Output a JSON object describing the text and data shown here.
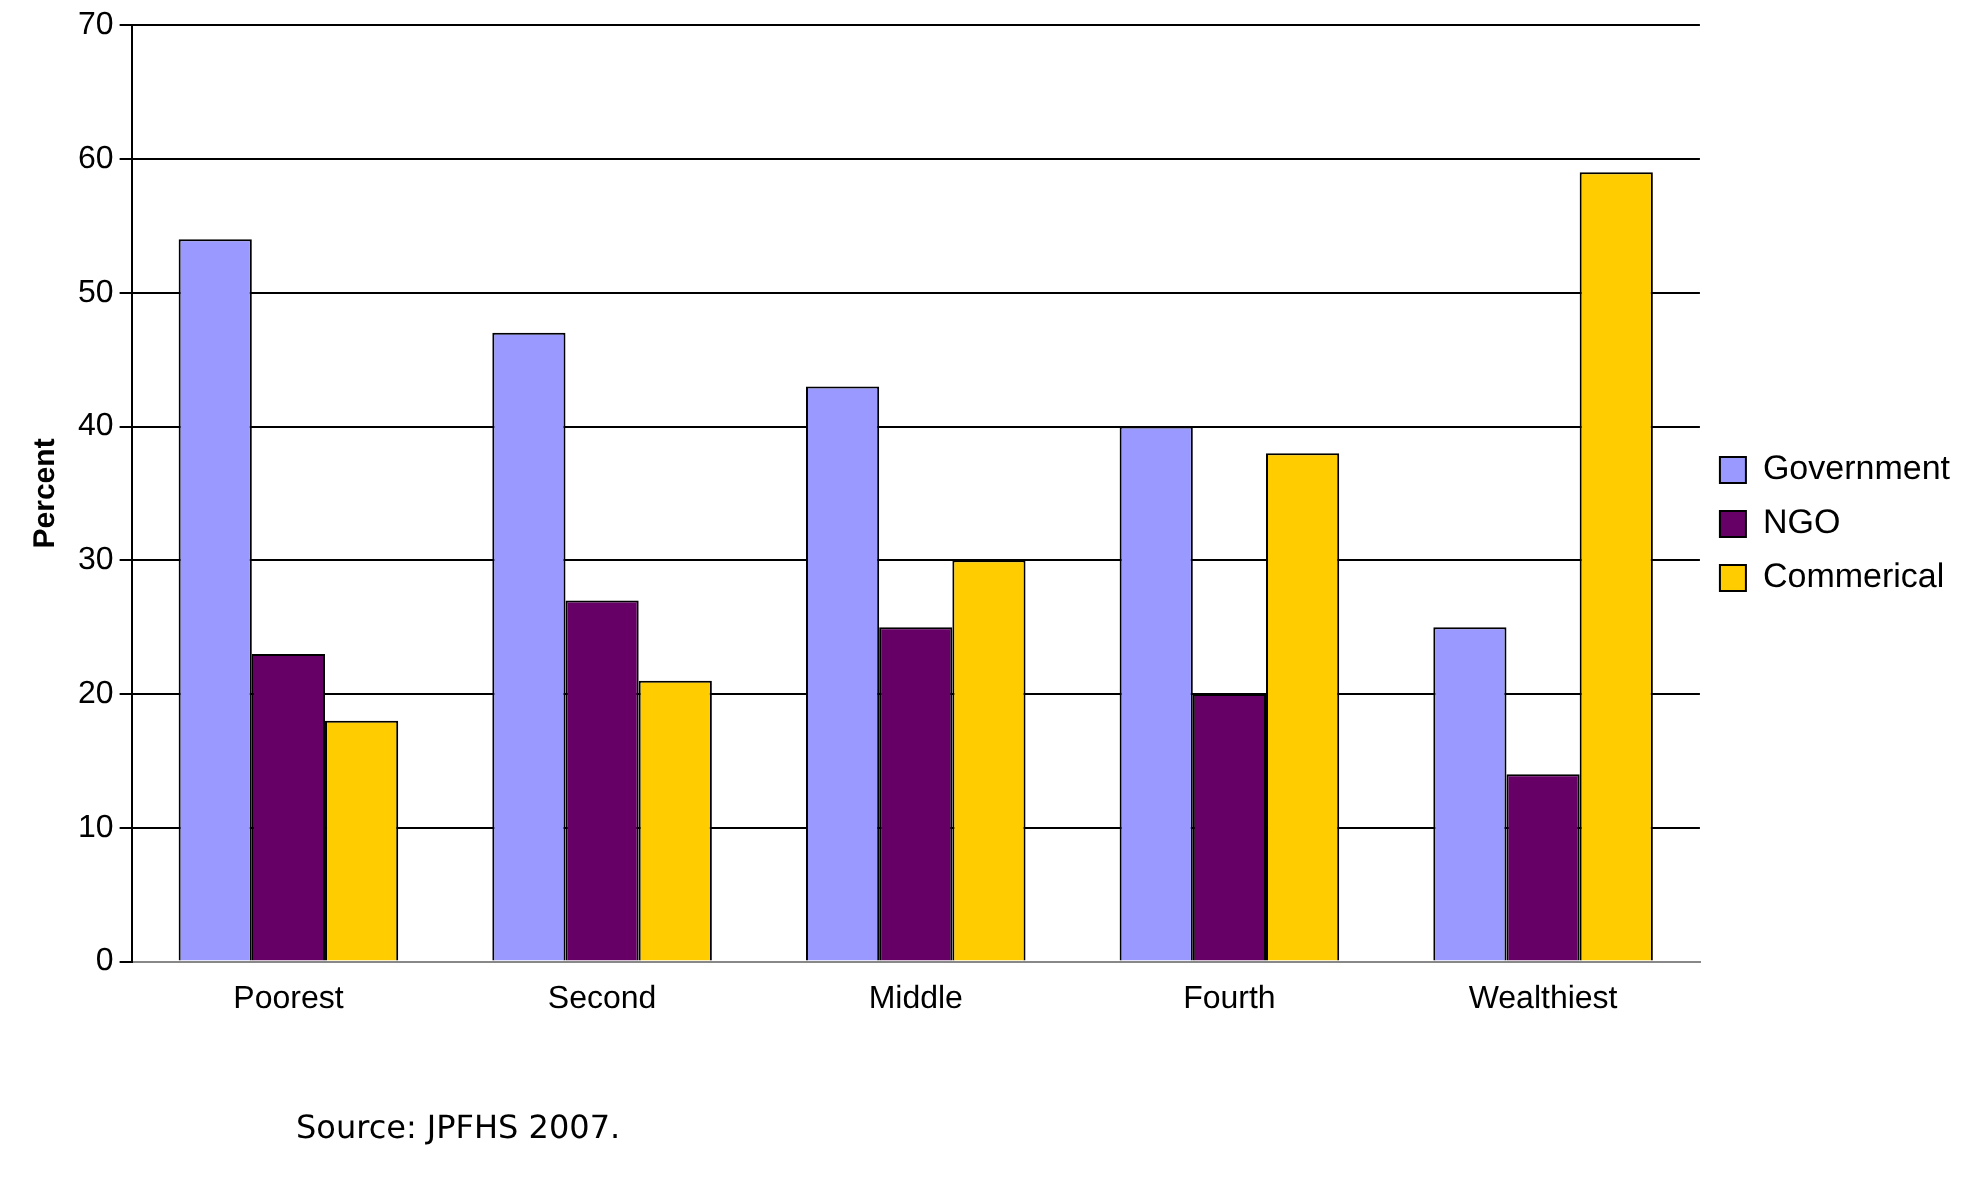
{
  "chart_data": {
    "type": "bar",
    "ylabel": "Percent",
    "categories": [
      "Poorest",
      "Second",
      "Middle",
      "Fourth",
      "Wealthiest"
    ],
    "series": [
      {
        "name": "Government",
        "color": "#9999ff",
        "values": [
          54,
          47,
          43,
          40,
          25
        ]
      },
      {
        "name": "NGO",
        "color": "#660066",
        "values": [
          23,
          27,
          25,
          20,
          14
        ]
      },
      {
        "name": "Commerical",
        "color": "#ffcc00",
        "values": [
          18,
          21,
          30,
          38,
          59
        ]
      }
    ],
    "ylim": [
      0,
      70
    ],
    "yticks": [
      0,
      10,
      20,
      30,
      40,
      50,
      60,
      70
    ],
    "grid": "y",
    "legend": "right",
    "annotations": [
      "Source: JPFHS 2007."
    ]
  }
}
